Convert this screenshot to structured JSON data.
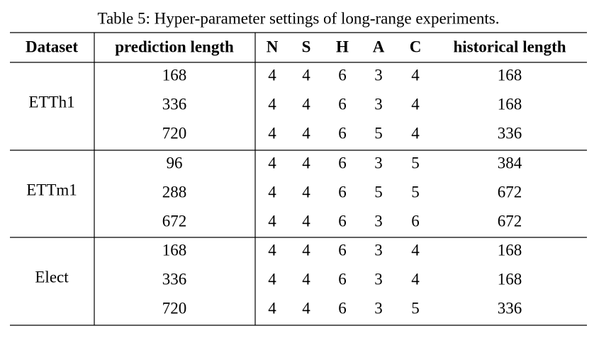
{
  "caption": "Table 5: Hyper-parameter settings of long-range experiments.",
  "table": {
    "header": [
      "Dataset",
      "prediction length",
      "N",
      "S",
      "H",
      "A",
      "C",
      "historical length"
    ],
    "groups": [
      {
        "dataset": "ETTh1",
        "rows": [
          [
            168,
            4,
            4,
            6,
            3,
            4,
            168
          ],
          [
            336,
            4,
            4,
            6,
            3,
            4,
            168
          ],
          [
            720,
            4,
            4,
            6,
            5,
            4,
            336
          ]
        ]
      },
      {
        "dataset": "ETTm1",
        "rows": [
          [
            96,
            4,
            4,
            6,
            3,
            5,
            384
          ],
          [
            288,
            4,
            4,
            6,
            5,
            5,
            672
          ],
          [
            672,
            4,
            4,
            6,
            3,
            6,
            672
          ]
        ]
      },
      {
        "dataset": "Elect",
        "rows": [
          [
            168,
            4,
            4,
            6,
            3,
            4,
            168
          ],
          [
            336,
            4,
            4,
            6,
            3,
            4,
            168
          ],
          [
            720,
            4,
            4,
            6,
            3,
            5,
            336
          ]
        ]
      }
    ]
  }
}
